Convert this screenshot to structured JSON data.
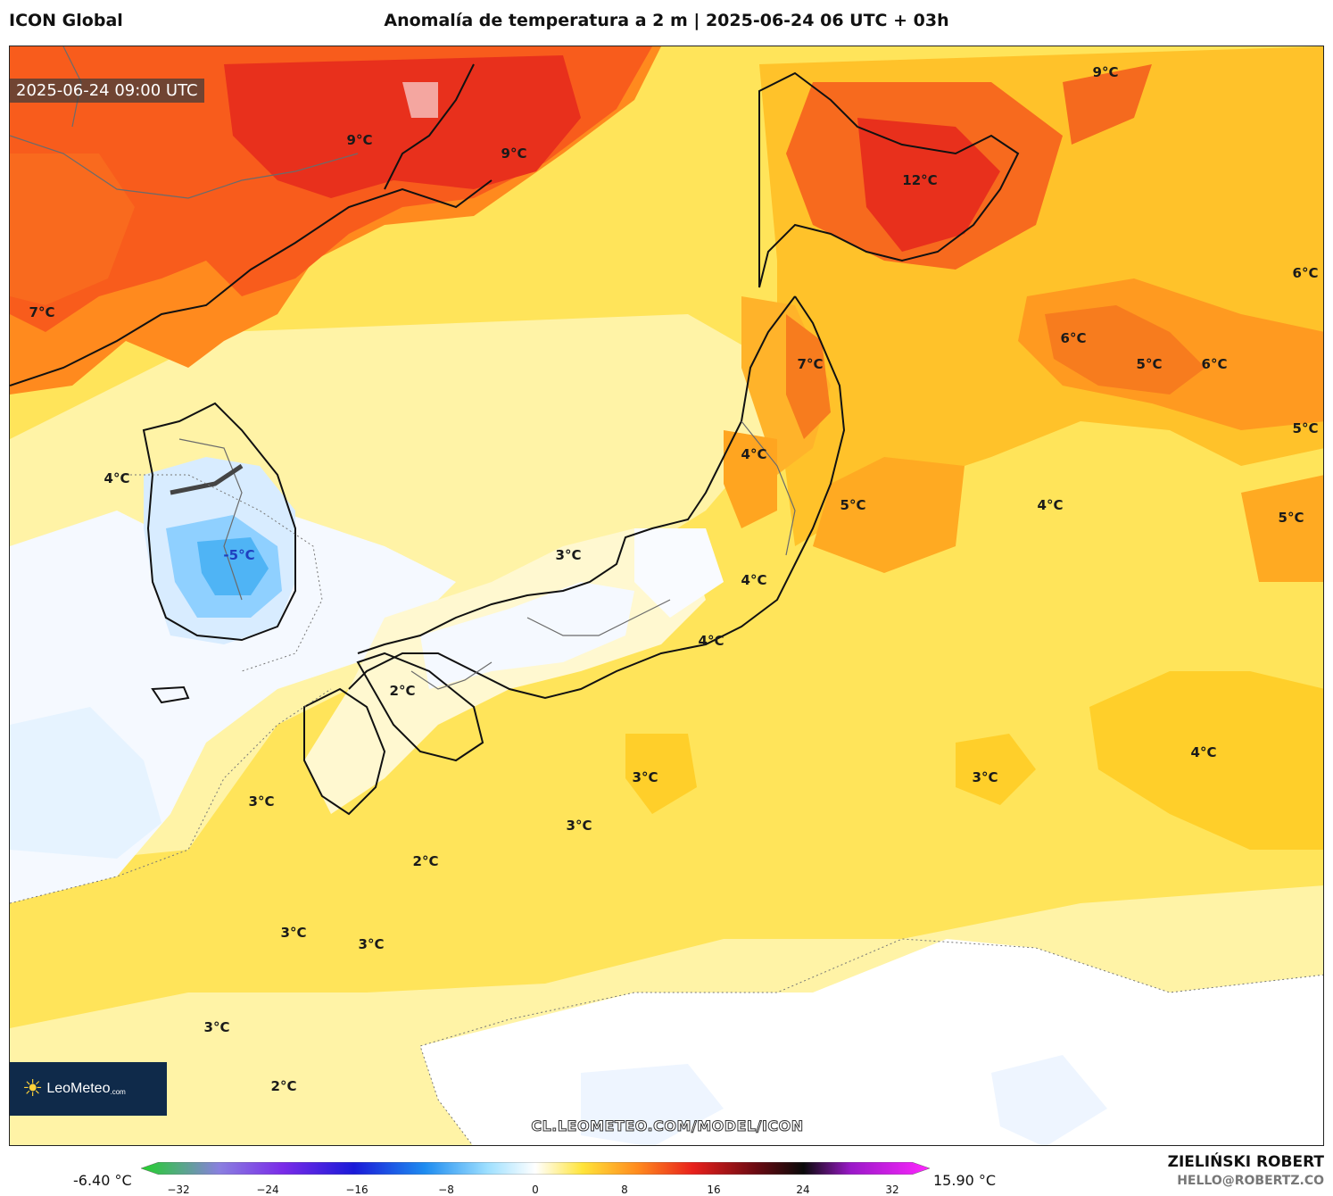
{
  "header": {
    "model": "ICON Global",
    "title": "Anomalía de temperatura a 2 m | 2025-06-24 06 UTC + 03h"
  },
  "map": {
    "valid_time": "2025-06-24 09:00 UTC",
    "labels": [
      {
        "text": "9°C"
      },
      {
        "text": "9°C"
      },
      {
        "text": "9°C"
      },
      {
        "text": "12°C"
      },
      {
        "text": "7°C"
      },
      {
        "text": "6°C"
      },
      {
        "text": "6°C"
      },
      {
        "text": "5°C"
      },
      {
        "text": "6°C"
      },
      {
        "text": "7°C"
      },
      {
        "text": "5°C"
      },
      {
        "text": "4°C"
      },
      {
        "text": "4°C"
      },
      {
        "text": "5°C"
      },
      {
        "text": "4°C"
      },
      {
        "text": "5°C"
      },
      {
        "text": "-5°C"
      },
      {
        "text": "3°C"
      },
      {
        "text": "4°C"
      },
      {
        "text": "4°C"
      },
      {
        "text": "2°C"
      },
      {
        "text": "3°C"
      },
      {
        "text": "3°C"
      },
      {
        "text": "3°C"
      },
      {
        "text": "4°C"
      },
      {
        "text": "3°C"
      },
      {
        "text": "2°C"
      },
      {
        "text": "3°C"
      },
      {
        "text": "3°C"
      },
      {
        "text": "3°C"
      },
      {
        "text": "2°C"
      }
    ],
    "url": "CL.LEOMETEO.COM/MODEL/ICON"
  },
  "logo": {
    "name": "LeoMeteo",
    "domain": ".com"
  },
  "colorbar": {
    "min_label": "-6.40 °C",
    "max_label": "15.90 °C",
    "ticks": [
      "−32",
      "−24",
      "−16",
      "−8",
      "0",
      "8",
      "16",
      "24",
      "32"
    ]
  },
  "footer": {
    "author": "ZIELIŃSKI ROBERT",
    "email": "HELLO@ROBERTZ.CO"
  }
}
